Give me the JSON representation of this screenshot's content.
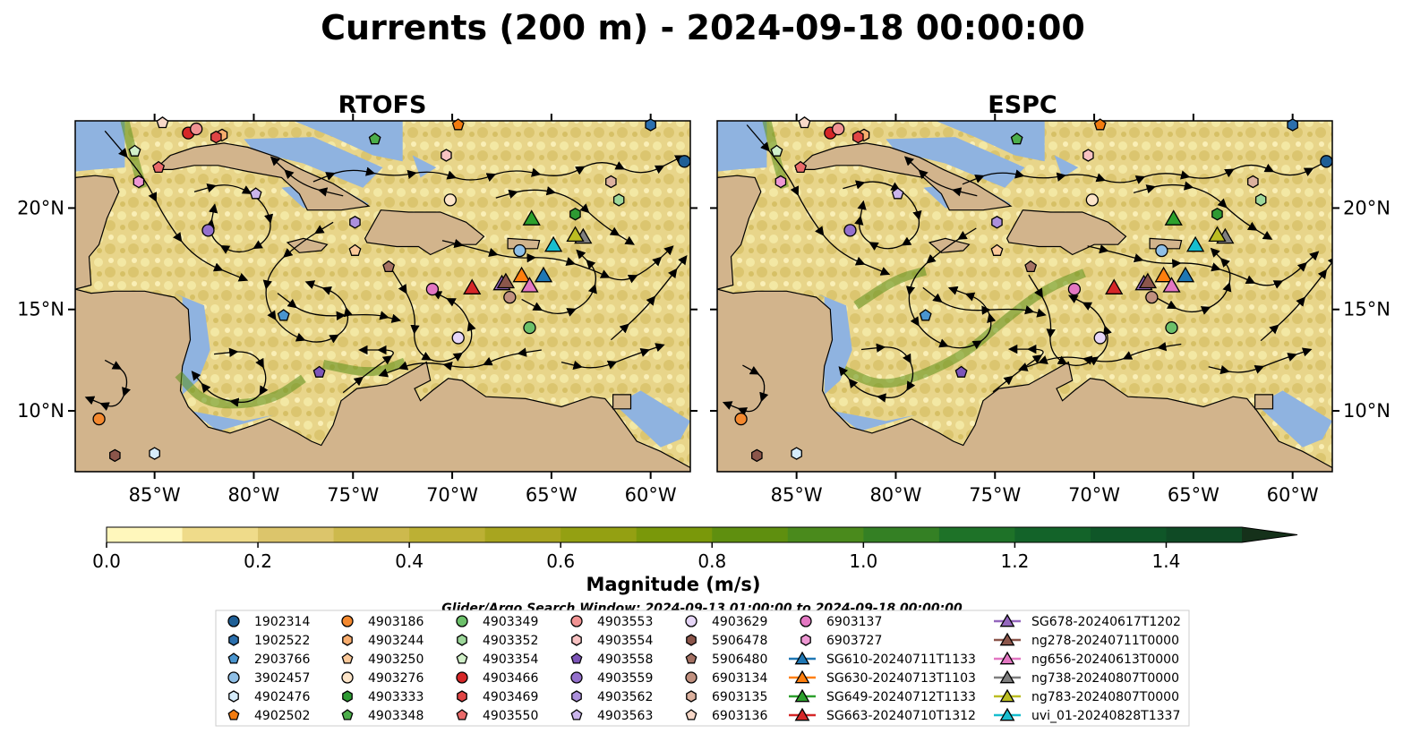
{
  "title": "Currents (200 m) - 2024-09-18 00:00:00",
  "panels": [
    {
      "title": "RTOFS"
    },
    {
      "title": "ESPC"
    }
  ],
  "lon_ticks": [
    "85°W",
    "80°W",
    "75°W",
    "70°W",
    "65°W",
    "60°W"
  ],
  "lat_ticks": [
    "10°N",
    "15°N",
    "20°N"
  ],
  "colorbar": {
    "label": "Magnitude (m/s)",
    "ticks": [
      "0.0",
      "0.2",
      "0.4",
      "0.6",
      "0.8",
      "1.0",
      "1.2",
      "1.4"
    ],
    "colors": [
      "#fff7bc",
      "#efdb8a",
      "#dcc56b",
      "#cdb94d",
      "#bcb034",
      "#a8a51f",
      "#94a012",
      "#7a980a",
      "#5f8f0f",
      "#4a8a1c",
      "#348024",
      "#1e7228",
      "#136329",
      "#0f5628",
      "#0f4a25",
      "#123e20",
      "#15311a"
    ]
  },
  "search_window": "Glider/Argo Search Window: 2024-09-13 01:00:00 to 2024-09-18 00:00:00",
  "chart_data": [
    {
      "type": "map",
      "title": "RTOFS",
      "xlabel": "",
      "ylabel": "",
      "xlim": [
        -89,
        -58
      ],
      "ylim": [
        7,
        24.3
      ],
      "floats": [
        {
          "name": "1902314",
          "lon": -58.3,
          "lat": 22.3
        },
        {
          "name": "1902522",
          "lon": -60.0,
          "lat": 24.1
        },
        {
          "name": "2903766",
          "lon": -78.5,
          "lat": 14.7
        },
        {
          "name": "3902457",
          "lon": -66.6,
          "lat": 17.9
        },
        {
          "name": "4902476",
          "lon": -85.0,
          "lat": 7.9
        },
        {
          "name": "4902502",
          "lon": -69.7,
          "lat": 24.1
        },
        {
          "name": "4903186",
          "lon": -87.8,
          "lat": 9.6
        },
        {
          "name": "4903244",
          "lon": -81.6,
          "lat": 23.6
        },
        {
          "name": "4903250",
          "lon": -74.9,
          "lat": 17.9
        },
        {
          "name": "4903276",
          "lon": -70.1,
          "lat": 20.4
        },
        {
          "name": "4903333",
          "lon": -63.8,
          "lat": 19.7
        },
        {
          "name": "4903348",
          "lon": -73.9,
          "lat": 23.4
        },
        {
          "name": "4903349",
          "lon": -66.1,
          "lat": 14.1
        },
        {
          "name": "4903352",
          "lon": -61.6,
          "lat": 20.4
        },
        {
          "name": "4903354",
          "lon": -86.0,
          "lat": 22.8
        },
        {
          "name": "4903466",
          "lon": -83.3,
          "lat": 23.7
        },
        {
          "name": "4903469",
          "lon": -81.9,
          "lat": 23.5
        },
        {
          "name": "4903550",
          "lon": -84.8,
          "lat": 22.0
        },
        {
          "name": "4903553",
          "lon": -82.9,
          "lat": 23.9
        },
        {
          "name": "4903554",
          "lon": -70.3,
          "lat": 22.6
        },
        {
          "name": "4903558",
          "lon": -76.7,
          "lat": 11.9
        },
        {
          "name": "4903559",
          "lon": -82.3,
          "lat": 18.9
        },
        {
          "name": "4903562",
          "lon": -74.9,
          "lat": 19.3
        },
        {
          "name": "4903563",
          "lon": -79.9,
          "lat": 20.7
        },
        {
          "name": "4903629",
          "lon": -69.7,
          "lat": 13.6
        },
        {
          "name": "5906478",
          "lon": -87.0,
          "lat": 7.8
        },
        {
          "name": "5906480",
          "lon": -73.2,
          "lat": 17.1
        },
        {
          "name": "6903134",
          "lon": -67.1,
          "lat": 15.6
        },
        {
          "name": "6903135",
          "lon": -62.0,
          "lat": 21.3
        },
        {
          "name": "6903136",
          "lon": -84.6,
          "lat": 24.2
        },
        {
          "name": "6903137",
          "lon": -71.0,
          "lat": 16.0
        },
        {
          "name": "6903727",
          "lon": -85.8,
          "lat": 21.3
        }
      ],
      "gliders": [
        {
          "name": "SG610-20240711T1133",
          "lon": -65.4,
          "lat": 16.6
        },
        {
          "name": "SG630-20240713T1103",
          "lon": -66.5,
          "lat": 16.6
        },
        {
          "name": "SG649-20240712T1133",
          "lon": -66.0,
          "lat": 19.4
        },
        {
          "name": "SG663-20240710T1312",
          "lon": -69.0,
          "lat": 16.0
        },
        {
          "name": "SG678-20240617T1202",
          "lon": -67.5,
          "lat": 16.2
        },
        {
          "name": "ng278-20240711T0000",
          "lon": -67.3,
          "lat": 16.3
        },
        {
          "name": "ng656-20240613T0000",
          "lon": -66.1,
          "lat": 16.1
        },
        {
          "name": "ng738-20240807T0000",
          "lon": -63.4,
          "lat": 18.5
        },
        {
          "name": "ng783-20240807T0000",
          "lon": -63.8,
          "lat": 18.6
        },
        {
          "name": "uvi_01-20240828T1337",
          "lon": -64.9,
          "lat": 18.1
        }
      ]
    },
    {
      "type": "map",
      "title": "ESPC",
      "xlabel": "",
      "ylabel": "",
      "xlim": [
        -89,
        -58
      ],
      "ylim": [
        7,
        24.3
      ],
      "same_markers_as": "RTOFS"
    }
  ],
  "legend": {
    "columns": [
      [
        {
          "label": "1902314",
          "marker": "circle",
          "color": "#1f5f96"
        },
        {
          "label": "1902522",
          "marker": "hexagon",
          "color": "#2b6fad"
        },
        {
          "label": "2903766",
          "marker": "pentagon",
          "color": "#4a95cf"
        },
        {
          "label": "3902457",
          "marker": "circle",
          "color": "#8fbfe6"
        },
        {
          "label": "4902476",
          "marker": "hexagon",
          "color": "#d6ecfa"
        },
        {
          "label": "4902502",
          "marker": "pentagon",
          "color": "#f27b0f"
        }
      ],
      [
        {
          "label": "4903186",
          "marker": "circle",
          "color": "#f4892f"
        },
        {
          "label": "4903244",
          "marker": "hexagon",
          "color": "#f8ad6e"
        },
        {
          "label": "4903250",
          "marker": "pentagon",
          "color": "#fbc99a"
        },
        {
          "label": "4903276",
          "marker": "circle",
          "color": "#fde5c9"
        },
        {
          "label": "4903333",
          "marker": "hexagon",
          "color": "#2e9a33"
        },
        {
          "label": "4903348",
          "marker": "pentagon",
          "color": "#4cae4a"
        }
      ],
      [
        {
          "label": "4903349",
          "marker": "circle",
          "color": "#6cc06a"
        },
        {
          "label": "4903352",
          "marker": "hexagon",
          "color": "#9dd79a"
        },
        {
          "label": "4903354",
          "marker": "pentagon",
          "color": "#d1f0c9"
        },
        {
          "label": "4903466",
          "marker": "circle",
          "color": "#d62728"
        },
        {
          "label": "4903469",
          "marker": "hexagon",
          "color": "#e04545"
        },
        {
          "label": "4903550",
          "marker": "pentagon",
          "color": "#ea6a6a"
        }
      ],
      [
        {
          "label": "4903553",
          "marker": "circle",
          "color": "#f19393"
        },
        {
          "label": "4903554",
          "marker": "hexagon",
          "color": "#f8c2c2"
        },
        {
          "label": "4903558",
          "marker": "pentagon",
          "color": "#7d55b8"
        },
        {
          "label": "4903559",
          "marker": "circle",
          "color": "#9470cc"
        },
        {
          "label": "4903562",
          "marker": "hexagon",
          "color": "#ac90dc"
        },
        {
          "label": "4903563",
          "marker": "pentagon",
          "color": "#cbb5ec"
        }
      ],
      [
        {
          "label": "4903629",
          "marker": "circle",
          "color": "#e6d6f7"
        },
        {
          "label": "5906478",
          "marker": "hexagon",
          "color": "#8c564b"
        },
        {
          "label": "5906480",
          "marker": "pentagon",
          "color": "#a57264"
        },
        {
          "label": "6903134",
          "marker": "circle",
          "color": "#c0907f"
        },
        {
          "label": "6903135",
          "marker": "hexagon",
          "color": "#dcb19e"
        },
        {
          "label": "6903136",
          "marker": "pentagon",
          "color": "#f7d8c8"
        }
      ],
      [
        {
          "label": "6903137",
          "marker": "circle",
          "color": "#e377c2"
        },
        {
          "label": "6903727",
          "marker": "hexagon",
          "color": "#ee97d3"
        },
        {
          "label": "SG610-20240711T1133",
          "marker": "triangle",
          "color": "#1f77b4"
        },
        {
          "label": "SG630-20240713T1103",
          "marker": "triangle",
          "color": "#ff7f0e"
        },
        {
          "label": "SG649-20240712T1133",
          "marker": "triangle",
          "color": "#2ca02c"
        },
        {
          "label": "SG663-20240710T1312",
          "marker": "triangle",
          "color": "#d62728"
        }
      ],
      [
        {
          "label": "SG678-20240617T1202",
          "marker": "triangle",
          "color": "#9467bd"
        },
        {
          "label": "ng278-20240711T0000",
          "marker": "triangle",
          "color": "#8c564b"
        },
        {
          "label": "ng656-20240613T0000",
          "marker": "triangle",
          "color": "#e377c2"
        },
        {
          "label": "ng738-20240807T0000",
          "marker": "triangle",
          "color": "#7f7f7f"
        },
        {
          "label": "ng783-20240807T0000",
          "marker": "triangle",
          "color": "#bcbd22"
        },
        {
          "label": "uvi_01-20240828T1337",
          "marker": "triangle",
          "color": "#17becf"
        }
      ]
    ]
  },
  "colors": {
    "land": "#d2b48c",
    "ocean_shelf": "#8fb3e0",
    "background": "#ffffff"
  }
}
